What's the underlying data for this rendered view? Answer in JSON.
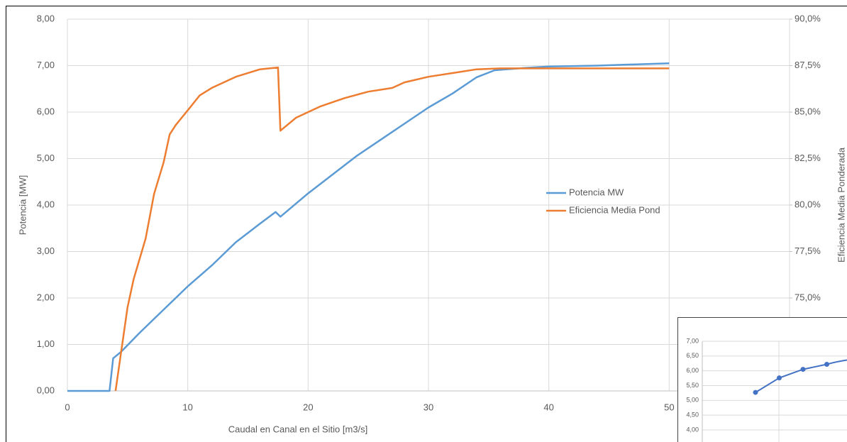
{
  "chart_data": [
    {
      "type": "line",
      "x_label": "Caudal en Canal en el Sitio [m3/s]",
      "y_label": "Potencia [MW]",
      "y2_label": "Eficiencia Media Ponderada",
      "xlim": [
        0,
        60
      ],
      "xticks": [
        0,
        10,
        20,
        30,
        40,
        50
      ],
      "ylim": [
        0,
        8
      ],
      "yticks": [
        {
          "value": 0,
          "label": "0,00"
        },
        {
          "value": 1,
          "label": "1,00"
        },
        {
          "value": 2,
          "label": "2,00"
        },
        {
          "value": 3,
          "label": "3,00"
        },
        {
          "value": 4,
          "label": "4,00"
        },
        {
          "value": 5,
          "label": "5,00"
        },
        {
          "value": 6,
          "label": "6,00"
        },
        {
          "value": 7,
          "label": "7,00"
        },
        {
          "value": 8,
          "label": "8,00"
        }
      ],
      "y2lim": [
        70,
        90
      ],
      "y2ticks": [
        {
          "value": 75,
          "label": "75,0%"
        },
        {
          "value": 77.5,
          "label": "77,5%"
        },
        {
          "value": 80,
          "label": "80,0%"
        },
        {
          "value": 82.5,
          "label": "82,5%"
        },
        {
          "value": 85,
          "label": "85,0%"
        },
        {
          "value": 87.5,
          "label": "87,5%"
        },
        {
          "value": 90,
          "label": "90,0%"
        }
      ],
      "grid": true,
      "legend": "right",
      "series": [
        {
          "name": "Potencia MW",
          "color": "#5b9bd5",
          "x": [
            0,
            3.5,
            3.8,
            4.5,
            6,
            8,
            10,
            12,
            14,
            16,
            17.3,
            17.7,
            20,
            22,
            24,
            26,
            28,
            30,
            32,
            34,
            35.5,
            38,
            40,
            44,
            50
          ],
          "values": [
            0,
            0,
            0.7,
            0.85,
            1.25,
            1.75,
            2.25,
            2.7,
            3.2,
            3.6,
            3.85,
            3.75,
            4.25,
            4.65,
            5.05,
            5.4,
            5.75,
            6.1,
            6.4,
            6.75,
            6.9,
            6.95,
            6.98,
            7.0,
            7.05
          ]
        },
        {
          "name": "Eficiencia Media Pond",
          "color": "#ed7d31",
          "axis": "y2",
          "x": [
            4,
            5,
            5.5,
            6.5,
            7.2,
            8,
            8.5,
            9,
            10,
            11,
            12,
            14,
            16,
            17.5,
            17.7,
            19,
            21,
            23,
            25,
            27,
            28,
            30,
            32,
            34,
            36,
            50
          ],
          "values": [
            70,
            74.5,
            76,
            78.2,
            80.6,
            82.3,
            83.8,
            84.3,
            85.1,
            85.9,
            86.3,
            86.9,
            87.3,
            87.4,
            84,
            84.7,
            85.3,
            85.75,
            86.1,
            86.3,
            86.6,
            86.9,
            87.1,
            87.3,
            87.35,
            87.35
          ]
        }
      ]
    },
    {
      "type": "scatter",
      "categories": [
        null,
        null,
        null,
        null
      ],
      "values": [
        5.27,
        5.76,
        6.05,
        6.22
      ],
      "color": "#4472c4",
      "ylim": [
        4,
        7
      ],
      "yticks": [
        {
          "value": 4,
          "label": "4,00"
        },
        {
          "value": 4.5,
          "label": "4,50"
        },
        {
          "value": 5,
          "label": "5,00"
        },
        {
          "value": 5.5,
          "label": "5,50"
        },
        {
          "value": 6,
          "label": "6,00"
        },
        {
          "value": 6.5,
          "label": "6,50"
        },
        {
          "value": 7,
          "label": "7,00"
        }
      ]
    }
  ]
}
